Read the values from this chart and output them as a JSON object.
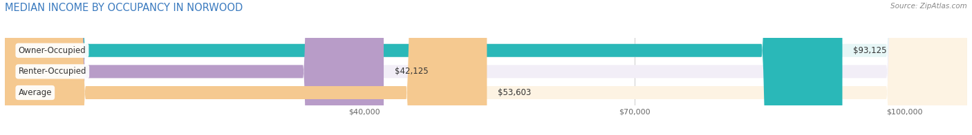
{
  "title": "MEDIAN INCOME BY OCCUPANCY IN NORWOOD",
  "source": "Source: ZipAtlas.com",
  "categories": [
    "Owner-Occupied",
    "Renter-Occupied",
    "Average"
  ],
  "values": [
    93125,
    42125,
    53603
  ],
  "labels": [
    "$93,125",
    "$42,125",
    "$53,603"
  ],
  "bar_colors": [
    "#2ab8b8",
    "#b89cc8",
    "#f5c990"
  ],
  "bar_bg_colors": [
    "#e6f6f6",
    "#f2eef7",
    "#fdf3e3"
  ],
  "xlim_min": 0,
  "xlim_max": 107000,
  "xticks": [
    40000,
    70000,
    100000
  ],
  "xtick_labels": [
    "$40,000",
    "$70,000",
    "$100,000"
  ],
  "bar_height": 0.62,
  "figsize": [
    14.06,
    1.96
  ],
  "dpi": 100,
  "title_fontsize": 10.5,
  "label_fontsize": 8.5,
  "tick_fontsize": 8,
  "source_fontsize": 7.5,
  "title_color": "#3a7abf",
  "source_color": "#888888",
  "label_color": "#444444",
  "tick_color": "#666666",
  "grid_color": "#d0d0d0"
}
